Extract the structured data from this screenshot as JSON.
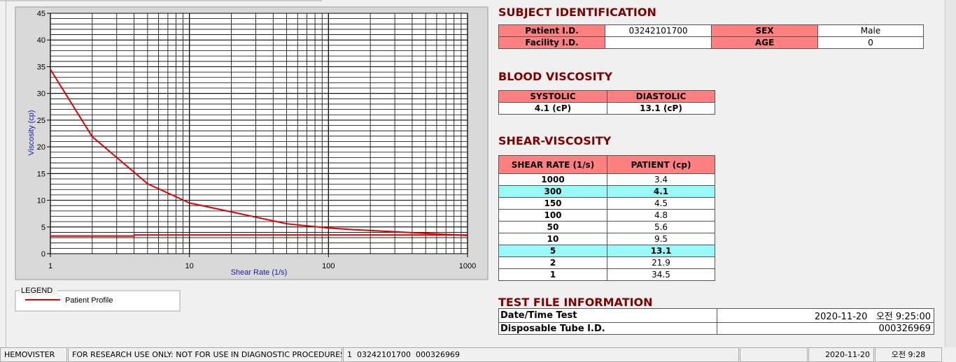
{
  "chart_data": {
    "type": "line",
    "x_label": "Shear Rate (1/s)",
    "y_label": "Viscosity (cp)",
    "x": [
      1,
      2,
      5,
      10,
      50,
      100,
      150,
      300,
      1000
    ],
    "series": [
      {
        "name": "Patient Profile",
        "color": "#e00000",
        "values": [
          34.5,
          21.9,
          13.1,
          9.5,
          5.6,
          4.8,
          4.5,
          4.1,
          3.4
        ]
      },
      {
        "color": "#e00000",
        "x": [
          1,
          4,
          4,
          1000
        ],
        "values": [
          3.3,
          3.3,
          3.5,
          3.5
        ]
      }
    ],
    "xlim": [
      1,
      1000
    ],
    "ylim": [
      0,
      45
    ],
    "xticks": [
      1,
      10,
      100,
      1000
    ],
    "yticks": [
      0,
      5,
      10,
      15,
      20,
      25,
      30,
      35,
      40,
      45
    ],
    "xscale": "log",
    "grid": true
  },
  "legend": {
    "title": "LEGEND"
  },
  "subject": {
    "title": "SUBJECT IDENTIFICATION",
    "fields": [
      {
        "label": "Patient I.D.",
        "value": "03242101700"
      },
      {
        "label": "SEX",
        "value": "Male"
      },
      {
        "label": "Facility I.D."
      },
      {
        "label": "AGE",
        "value": "0"
      }
    ]
  },
  "blood": {
    "title": "BLOOD VISCOSITY",
    "headers": [
      "SYSTOLIC",
      "DIASTOLIC"
    ],
    "values": [
      "4.1 (cP)",
      "13.1 (cP)"
    ]
  },
  "shear": {
    "title": "SHEAR-VISCOSITY",
    "headers": [
      "SHEAR RATE (1/s)",
      "PATIENT (cp)"
    ],
    "rows": [
      {
        "rate": "1000",
        "value": "3.4"
      },
      {
        "rate": "300",
        "value": "4.1",
        "highlight": true
      },
      {
        "rate": "150",
        "value": "4.5"
      },
      {
        "rate": "100",
        "value": "4.8"
      },
      {
        "rate": "50",
        "value": "5.6"
      },
      {
        "rate": "10",
        "value": "9.5"
      },
      {
        "rate": "5",
        "value": "13.1",
        "highlight": true
      },
      {
        "rate": "2",
        "value": "21.9"
      },
      {
        "rate": "1",
        "value": "34.5"
      }
    ]
  },
  "test_file": {
    "title": "TEST FILE INFORMATION",
    "rows": [
      {
        "label": "Date/Time Test",
        "value": "2020-11-20   오전 9:25:00"
      },
      {
        "label": "Disposable Tube I.D.",
        "value": "000326969"
      }
    ]
  },
  "status_bar": [
    "HEMOVISTER",
    "FOR RESEARCH USE ONLY: NOT FOR USE IN DIAGNOSTIC PROCEDURES",
    "1  03242101700  000326969",
    "2020-11-20",
    "오전 9:28"
  ]
}
